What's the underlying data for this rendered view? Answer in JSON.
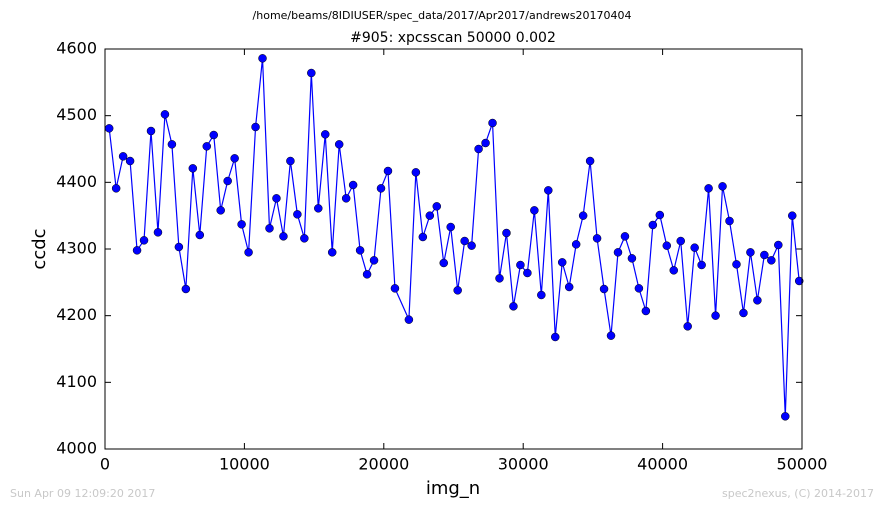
{
  "chart_data": {
    "type": "line",
    "suptitle": "/home/beams/8IDIUSER/spec_data/2017/Apr2017/andrews20170404",
    "title": "#905: xpcsscan 50000 0.002",
    "xlabel": "img_n",
    "ylabel": "ccdc",
    "footer_left": "Sun Apr 09 12:09:20 2017",
    "footer_right": "spec2nexus, (C) 2014-2017",
    "xlim": [
      0,
      50000
    ],
    "xticks": [
      0,
      10000,
      20000,
      30000,
      40000,
      50000
    ],
    "ylim": [
      4000,
      4600
    ],
    "yticks": [
      4000,
      4100,
      4200,
      4300,
      4400,
      4500,
      4600
    ],
    "grid": false,
    "x": [
      300,
      800,
      1300,
      1800,
      2300,
      2800,
      3300,
      3800,
      4300,
      4800,
      5300,
      5800,
      6300,
      6800,
      7300,
      7800,
      8300,
      8800,
      9300,
      9800,
      10300,
      10800,
      11300,
      11800,
      12300,
      12800,
      13300,
      13800,
      14300,
      14800,
      15300,
      15800,
      16300,
      16800,
      17300,
      17800,
      18300,
      18800,
      19300,
      19800,
      20300,
      20800,
      21800,
      22300,
      22800,
      23300,
      23800,
      24300,
      24800,
      25300,
      25800,
      26300,
      26800,
      27300,
      27800,
      28300,
      28800,
      29300,
      29800,
      30300,
      30800,
      31300,
      31800,
      32300,
      32800,
      33300,
      33800,
      34300,
      34800,
      35300,
      35800,
      36300,
      36800,
      37300,
      37800,
      38300,
      38800,
      39300,
      39800,
      40300,
      40800,
      41300,
      41800,
      42300,
      42800,
      43300,
      43800,
      44300,
      44800,
      45300,
      45800,
      46300,
      46800,
      47300,
      47800,
      48300,
      48800,
      49300,
      49800
    ],
    "series": [
      {
        "color": "#0000ff",
        "values": [
          4481,
          4391,
          4439,
          4432,
          4298,
          4313,
          4477,
          4325,
          4502,
          4457,
          4303,
          4240,
          4421,
          4321,
          4454,
          4471,
          4358,
          4402,
          4436,
          4337,
          4295,
          4483,
          4586,
          4331,
          4376,
          4319,
          4432,
          4352,
          4316,
          4564,
          4361,
          4472,
          4295,
          4457,
          4376,
          4396,
          4298,
          4262,
          4283,
          4391,
          4417,
          4241,
          4194,
          4415,
          4318,
          4350,
          4364,
          4279,
          4333,
          4238,
          4312,
          4305,
          4450,
          4459,
          4489,
          4256,
          4324,
          4214,
          4276,
          4264,
          4358,
          4231,
          4388,
          4168,
          4280,
          4243,
          4307,
          4350,
          4432,
          4316,
          4240,
          4170,
          4295,
          4319,
          4286,
          4241,
          4207,
          4336,
          4351,
          4305,
          4268,
          4312,
          4184,
          4302,
          4276,
          4391,
          4200,
          4394,
          4342,
          4277,
          4204,
          4295,
          4223,
          4291,
          4283,
          4306,
          4049,
          4350,
          4252
        ]
      }
    ]
  }
}
